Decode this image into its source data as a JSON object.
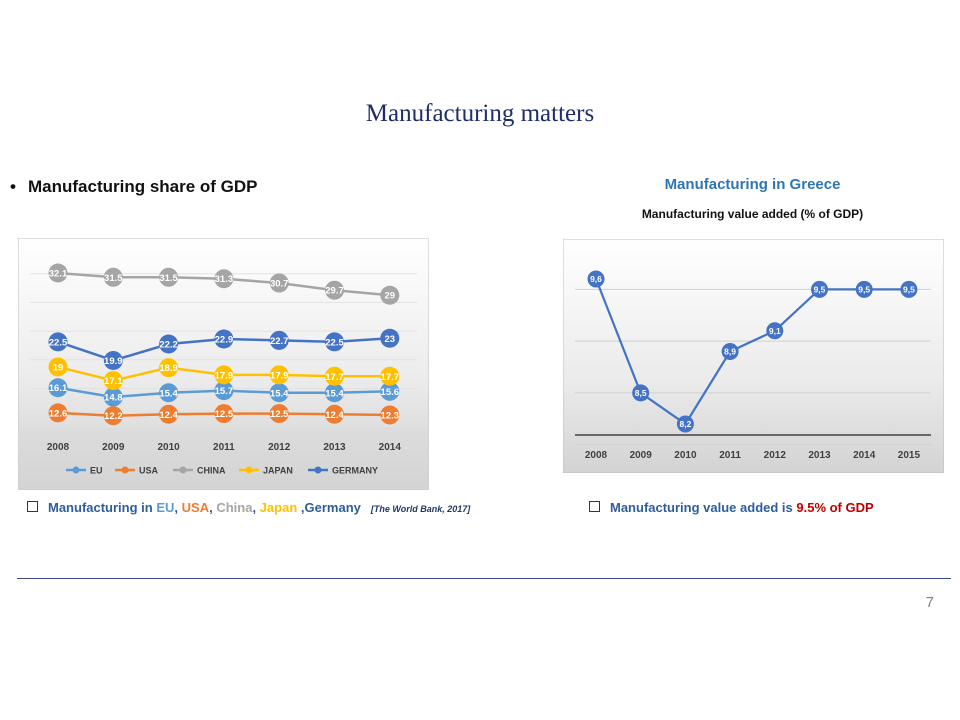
{
  "slide": {
    "title": "Manufacturing matters",
    "bullet": "Manufacturing share of GDP",
    "page_number": "7"
  },
  "greece_panel": {
    "title": "Manufacturing in Greece",
    "subtitle": "Manufacturing value added (% of GDP)"
  },
  "notes": {
    "left_prefix": "Manufacturing in ",
    "left_eu": "EU",
    "left_usa": "USA",
    "left_china": "China",
    "left_japan": "Japan",
    "left_germany": "Germany",
    "left_source": "[The World Bank, 2017]",
    "right_prefix": "Manufacturing value added is ",
    "right_highlight": "9.5% of GDP"
  },
  "colors": {
    "eu": "#5b9bd5",
    "usa": "#ed7d31",
    "china": "#a5a5a5",
    "japan": "#ffc000",
    "germany": "#4472c4",
    "greece": "#4472c4",
    "highlight": "#c00000",
    "note_blue": "#2e5d9c"
  },
  "chart_data": [
    {
      "type": "line",
      "title": "",
      "categories": [
        "2008",
        "2009",
        "2010",
        "2011",
        "2012",
        "2013",
        "2014"
      ],
      "ylim": [
        10,
        34
      ],
      "legend_position": "bottom",
      "series": [
        {
          "name": "EU",
          "color": "#5b9bd5",
          "values": [
            16.1,
            14.8,
            15.4,
            15.7,
            15.4,
            15.4,
            15.6
          ],
          "labels": [
            "16.1",
            "14.8",
            "15.4",
            "15.7",
            "15.4",
            "15.4",
            "15.6"
          ]
        },
        {
          "name": "USA",
          "color": "#ed7d31",
          "values": [
            12.6,
            12.2,
            12.4,
            12.5,
            12.5,
            12.4,
            12.3
          ],
          "labels": [
            "12.6",
            "12.2",
            "12.4",
            "12.5",
            "12.5",
            "12.4",
            "12.3"
          ]
        },
        {
          "name": "CHINA",
          "color": "#a5a5a5",
          "values": [
            32.1,
            31.5,
            31.5,
            31.3,
            30.7,
            29.7,
            29
          ],
          "labels": [
            "32.1",
            "31.5",
            "31.5",
            "31.3",
            "30.7",
            "29.7",
            "29"
          ]
        },
        {
          "name": "JAPAN",
          "color": "#ffc000",
          "values": [
            19,
            17.1,
            18.9,
            17.9,
            17.9,
            17.7,
            17.7
          ],
          "labels": [
            "19",
            "17.1",
            "18.9",
            "17.9",
            "17.9",
            "17.7",
            "17.7"
          ]
        },
        {
          "name": "GERMANY",
          "color": "#4472c4",
          "values": [
            22.5,
            19.9,
            22.2,
            22.9,
            22.7,
            22.5,
            23
          ],
          "labels": [
            "22.5",
            "19.9",
            "22.2",
            "22.9",
            "22.7",
            "22.5",
            "23"
          ]
        }
      ]
    },
    {
      "type": "line",
      "title": "Manufacturing value added (% of GDP)",
      "categories": [
        "2008",
        "2009",
        "2010",
        "2011",
        "2012",
        "2013",
        "2014",
        "2015"
      ],
      "ylim": [
        7.5,
        10.0
      ],
      "series": [
        {
          "color": "#4472c4",
          "values": [
            9.6,
            8.5,
            8.2,
            8.9,
            9.1,
            9.5,
            9.5,
            9.5
          ],
          "labels": [
            "9,6",
            "8,5",
            "8,2",
            "8,9",
            "9,1",
            "9,5",
            "9,5",
            "9,5"
          ]
        }
      ]
    }
  ]
}
